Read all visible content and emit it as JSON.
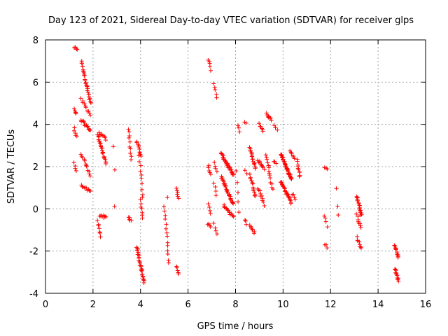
{
  "chart_data": {
    "type": "scatter",
    "title": "Day 123 of 2021, Sidereal Day-to-day VTEC variation (SDTVAR) for receiver glps",
    "xlabel": "GPS time / hours",
    "ylabel": "SDTVAR / TECUs",
    "xlim": [
      0,
      16
    ],
    "ylim": [
      -4,
      8
    ],
    "xticks": [
      0,
      2,
      4,
      6,
      8,
      10,
      12,
      14,
      16
    ],
    "yticks": [
      -4,
      -2,
      0,
      2,
      4,
      6,
      8
    ],
    "grid": true,
    "marker": "+",
    "color": "#ff0000",
    "clusters": [
      {
        "x0": 1.2,
        "x1": 1.35,
        "y0": 7.65,
        "y1": 7.5,
        "n": 4
      },
      {
        "x0": 1.2,
        "x1": 1.3,
        "y0": 4.7,
        "y1": 4.5,
        "n": 5
      },
      {
        "x0": 1.2,
        "x1": 1.3,
        "y0": 3.8,
        "y1": 3.4,
        "n": 5
      },
      {
        "x0": 1.2,
        "x1": 1.3,
        "y0": 2.2,
        "y1": 1.8,
        "n": 4
      },
      {
        "x0": 1.5,
        "x1": 1.9,
        "y0": 7.0,
        "y1": 5.0,
        "n": 28
      },
      {
        "x0": 1.5,
        "x1": 1.9,
        "y0": 5.2,
        "y1": 4.4,
        "n": 10
      },
      {
        "x0": 1.5,
        "x1": 1.9,
        "y0": 4.2,
        "y1": 3.7,
        "n": 14
      },
      {
        "x0": 1.5,
        "x1": 1.9,
        "y0": 2.6,
        "y1": 1.6,
        "n": 12
      },
      {
        "x0": 1.5,
        "x1": 1.9,
        "y0": 1.1,
        "y1": 0.8,
        "n": 10
      },
      {
        "x0": 2.2,
        "x1": 2.55,
        "y0": 3.5,
        "y1": 2.1,
        "n": 24
      },
      {
        "x0": 2.25,
        "x1": 2.55,
        "y0": 3.6,
        "y1": 3.3,
        "n": 8
      },
      {
        "x0": 2.2,
        "x1": 2.3,
        "y0": -0.6,
        "y1": -1.3,
        "n": 7
      },
      {
        "x0": 2.3,
        "x1": 2.55,
        "y0": -0.3,
        "y1": -0.4,
        "n": 8
      },
      {
        "x0": 2.85,
        "x1": 2.9,
        "y0": 3.0,
        "y1": 1.85,
        "n": 2
      },
      {
        "x0": 2.9,
        "x1": 2.9,
        "y0": 0.1,
        "y1": 0.1,
        "n": 1
      },
      {
        "x0": 3.5,
        "x1": 3.6,
        "y0": 3.8,
        "y1": 2.3,
        "n": 10
      },
      {
        "x0": 3.5,
        "x1": 3.6,
        "y0": -0.4,
        "y1": -0.55,
        "n": 5
      },
      {
        "x0": 3.85,
        "x1": 4.0,
        "y0": 3.2,
        "y1": 2.5,
        "n": 10
      },
      {
        "x0": 3.95,
        "x1": 4.1,
        "y0": 2.5,
        "y1": 0.5,
        "n": 10
      },
      {
        "x0": 4.0,
        "x1": 4.1,
        "y0": 0.4,
        "y1": -0.4,
        "n": 7
      },
      {
        "x0": 3.85,
        "x1": 4.15,
        "y0": -1.8,
        "y1": -3.5,
        "n": 28
      },
      {
        "x0": 5.0,
        "x1": 5.2,
        "y0": 0.1,
        "y1": -2.6,
        "n": 14
      },
      {
        "x0": 5.15,
        "x1": 5.15,
        "y0": 0.6,
        "y1": 0.6,
        "n": 1
      },
      {
        "x0": 5.5,
        "x1": 5.6,
        "y0": 1.0,
        "y1": 0.5,
        "n": 6
      },
      {
        "x0": 5.5,
        "x1": 5.6,
        "y0": -2.75,
        "y1": -3.05,
        "n": 5
      },
      {
        "x0": 6.85,
        "x1": 6.95,
        "y0": 7.1,
        "y1": 6.6,
        "n": 5
      },
      {
        "x0": 6.85,
        "x1": 6.95,
        "y0": 2.1,
        "y1": 1.6,
        "n": 5
      },
      {
        "x0": 6.85,
        "x1": 6.95,
        "y0": 0.3,
        "y1": -0.2,
        "n": 4
      },
      {
        "x0": 6.85,
        "x1": 6.95,
        "y0": -0.7,
        "y1": -0.9,
        "n": 4
      },
      {
        "x0": 7.1,
        "x1": 7.2,
        "y0": 5.9,
        "y1": 5.3,
        "n": 5
      },
      {
        "x0": 7.1,
        "x1": 7.2,
        "y0": 2.2,
        "y1": 1.8,
        "n": 4
      },
      {
        "x0": 7.1,
        "x1": 7.2,
        "y0": 1.2,
        "y1": 0.6,
        "n": 4
      },
      {
        "x0": 7.1,
        "x1": 7.2,
        "y0": -0.7,
        "y1": -1.2,
        "n": 4
      },
      {
        "x0": 7.4,
        "x1": 7.9,
        "y0": 2.6,
        "y1": 1.6,
        "n": 30
      },
      {
        "x0": 7.4,
        "x1": 7.9,
        "y0": 1.5,
        "y1": 0.2,
        "n": 30
      },
      {
        "x0": 7.5,
        "x1": 7.9,
        "y0": 0.2,
        "y1": -0.4,
        "n": 14
      },
      {
        "x0": 8.1,
        "x1": 8.15,
        "y0": 3.9,
        "y1": 3.7,
        "n": 3
      },
      {
        "x0": 8.05,
        "x1": 8.15,
        "y0": 1.8,
        "y1": -0.2,
        "n": 5
      },
      {
        "x0": 8.4,
        "x1": 8.45,
        "y0": 4.1,
        "y1": 4.1,
        "n": 2
      },
      {
        "x0": 8.4,
        "x1": 8.5,
        "y0": 1.8,
        "y1": 1.7,
        "n": 2
      },
      {
        "x0": 8.4,
        "x1": 8.45,
        "y0": -0.5,
        "y1": -0.7,
        "n": 3
      },
      {
        "x0": 8.6,
        "x1": 8.85,
        "y0": 2.9,
        "y1": 1.9,
        "n": 18
      },
      {
        "x0": 8.6,
        "x1": 8.85,
        "y0": 1.6,
        "y1": 0.6,
        "n": 14
      },
      {
        "x0": 8.6,
        "x1": 8.8,
        "y0": -0.8,
        "y1": -1.1,
        "n": 8
      },
      {
        "x0": 9.0,
        "x1": 9.15,
        "y0": 4.0,
        "y1": 3.7,
        "n": 6
      },
      {
        "x0": 8.95,
        "x1": 9.2,
        "y0": 2.3,
        "y1": 1.9,
        "n": 10
      },
      {
        "x0": 8.95,
        "x1": 9.2,
        "y0": 1.0,
        "y1": 0.2,
        "n": 10
      },
      {
        "x0": 9.3,
        "x1": 9.5,
        "y0": 4.5,
        "y1": 4.2,
        "n": 8
      },
      {
        "x0": 9.3,
        "x1": 9.55,
        "y0": 2.6,
        "y1": 0.9,
        "n": 14
      },
      {
        "x0": 9.6,
        "x1": 9.75,
        "y0": 3.9,
        "y1": 3.7,
        "n": 3
      },
      {
        "x0": 9.6,
        "x1": 9.7,
        "y0": 2.3,
        "y1": 2.2,
        "n": 3
      },
      {
        "x0": 9.9,
        "x1": 10.35,
        "y0": 2.6,
        "y1": 1.4,
        "n": 40
      },
      {
        "x0": 9.9,
        "x1": 10.35,
        "y0": 1.3,
        "y1": 0.3,
        "n": 25
      },
      {
        "x0": 10.3,
        "x1": 10.5,
        "y0": 2.7,
        "y1": 2.4,
        "n": 6
      },
      {
        "x0": 10.4,
        "x1": 10.5,
        "y0": 0.7,
        "y1": 0.5,
        "n": 4
      },
      {
        "x0": 10.6,
        "x1": 10.7,
        "y0": 2.3,
        "y1": 1.5,
        "n": 10
      },
      {
        "x0": 11.75,
        "x1": 11.85,
        "y0": 1.95,
        "y1": 1.9,
        "n": 3
      },
      {
        "x0": 11.75,
        "x1": 11.85,
        "y0": -0.3,
        "y1": -0.8,
        "n": 4
      },
      {
        "x0": 11.75,
        "x1": 11.85,
        "y0": -1.7,
        "y1": -1.8,
        "n": 3
      },
      {
        "x0": 12.25,
        "x1": 12.3,
        "y0": 1.0,
        "y1": 0.1,
        "n": 2
      },
      {
        "x0": 12.3,
        "x1": 12.3,
        "y0": -0.3,
        "y1": -0.3,
        "n": 1
      },
      {
        "x0": 13.1,
        "x1": 13.3,
        "y0": 0.6,
        "y1": -0.3,
        "n": 18
      },
      {
        "x0": 13.1,
        "x1": 13.3,
        "y0": -0.3,
        "y1": -0.9,
        "n": 8
      },
      {
        "x0": 13.1,
        "x1": 13.3,
        "y0": -1.35,
        "y1": -1.9,
        "n": 8
      },
      {
        "x0": 14.7,
        "x1": 14.85,
        "y0": -1.7,
        "y1": -2.3,
        "n": 12
      },
      {
        "x0": 14.7,
        "x1": 14.85,
        "y0": -2.8,
        "y1": -3.4,
        "n": 12
      }
    ]
  }
}
